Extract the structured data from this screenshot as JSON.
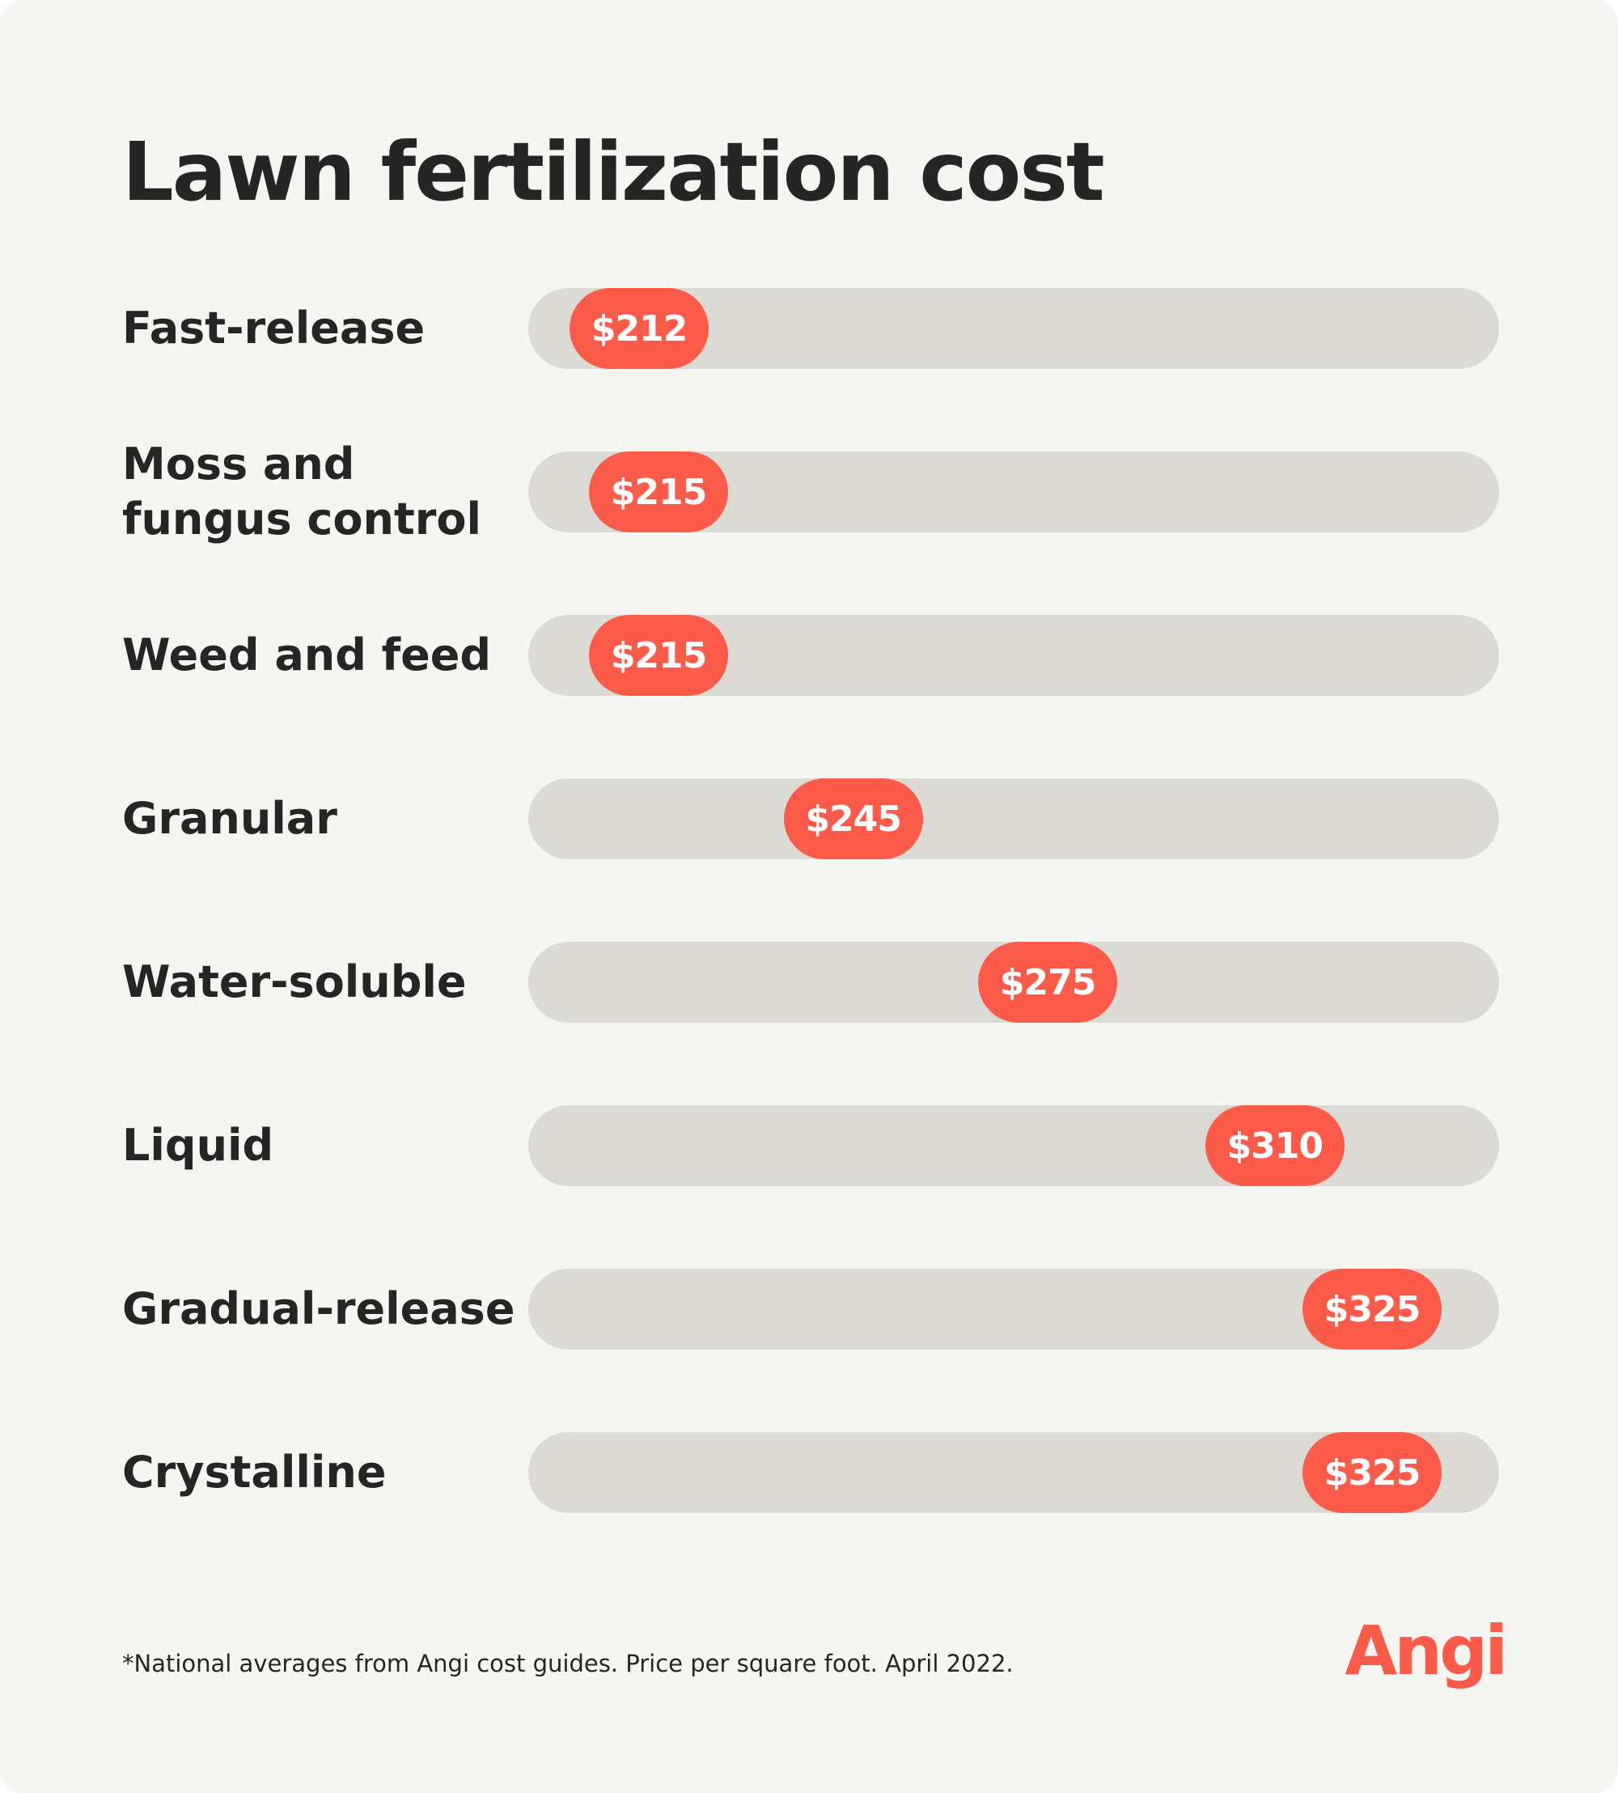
{
  "title": "Lawn fertilization cost",
  "footnote": "*National averages from Angi cost guides. Price per square foot. April 2022.",
  "logo": "Angi",
  "colors": {
    "background": "#f5f5f2",
    "track": "#dcdad4",
    "marker": "#fd5b4a",
    "text": "#252525",
    "marker_text": "#ffffff"
  },
  "chart_data": {
    "type": "bar",
    "title": "Lawn fertilization cost",
    "xlabel": "",
    "ylabel": "",
    "currency": "$",
    "categories": [
      "Fast-release",
      "Moss and\nfungus control",
      "Weed and feed",
      "Granular",
      "Water-soluble",
      "Liquid",
      "Gradual-release",
      "Crystalline"
    ],
    "values": [
      212,
      215,
      215,
      245,
      275,
      310,
      325,
      325
    ],
    "value_labels": [
      "$212",
      "$215",
      "$215",
      "$245",
      "$275",
      "$310",
      "$325",
      "$325"
    ],
    "xlim": [
      180,
      360
    ],
    "grid": false,
    "legend": "none"
  }
}
